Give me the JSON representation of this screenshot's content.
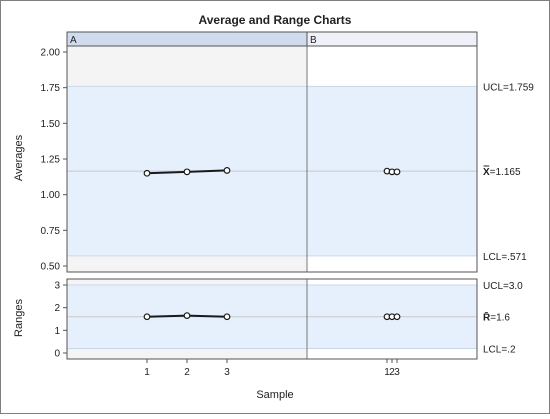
{
  "chart_data": {
    "type": "line",
    "title": "Average and Range Charts",
    "phases": [
      "A",
      "B"
    ],
    "xlabel": "Sample",
    "x_ticks": [
      "1",
      "2",
      "3"
    ],
    "averages": {
      "ylabel": "Averages",
      "ylim": [
        0.5,
        2.0
      ],
      "y_ticks": [
        "0.50",
        "0.75",
        "1.00",
        "1.25",
        "1.50",
        "1.75",
        "2.00"
      ],
      "series": [
        {
          "phase": "A",
          "x": [
            1,
            2,
            3
          ],
          "values": [
            1.15,
            1.16,
            1.17
          ]
        },
        {
          "phase": "B",
          "x": [
            1,
            2,
            3
          ],
          "values": [
            1.165,
            1.16,
            1.16
          ]
        }
      ],
      "ucl": 1.759,
      "center": 1.165,
      "lcl": 0.571,
      "ucl_label": "UCL=1.759",
      "center_symbol": "X̿",
      "center_label": "=1.165",
      "lcl_label": "LCL=.571"
    },
    "ranges": {
      "ylabel": "Ranges",
      "ylim": [
        0,
        3
      ],
      "y_ticks": [
        "0",
        "1",
        "2",
        "3"
      ],
      "series": [
        {
          "phase": "A",
          "x": [
            1,
            2,
            3
          ],
          "values": [
            1.6,
            1.65,
            1.6
          ]
        },
        {
          "phase": "B",
          "x": [
            1,
            2,
            3
          ],
          "values": [
            1.6,
            1.6,
            1.6
          ]
        }
      ],
      "ucl": 3.0,
      "center": 1.6,
      "lcl": 0.2,
      "ucl_label": "UCL=3.0",
      "center_symbol": "R̄",
      "center_label": "=1.6",
      "lcl_label": "LCL=.2"
    },
    "colors": {
      "band": "#e6f0fc",
      "phase_a_bg": "#f4f4f4",
      "phase_a_header": "#d0dcee",
      "phase_b_header": "#f0f0f8",
      "line": "#1a1a1a",
      "limit_line": "#c8d8ea",
      "center_line": "#c8c8c8"
    }
  }
}
